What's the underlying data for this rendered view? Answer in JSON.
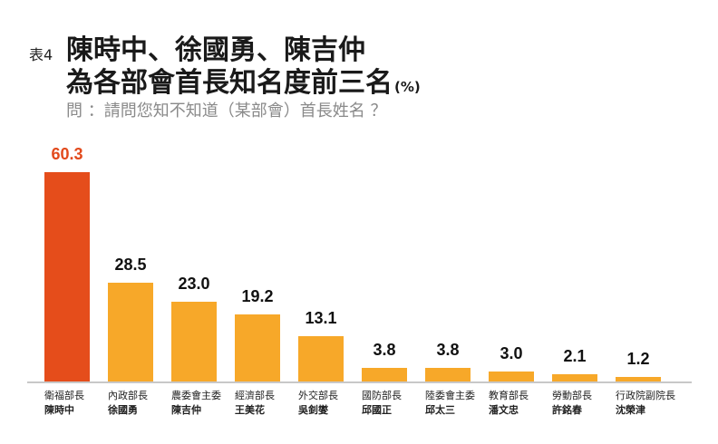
{
  "header": {
    "table_no": "表4",
    "title_line1": "陳時中、徐國勇、陳吉仲",
    "title_line2": "為各部會首長知名度前三名",
    "unit": "(%)",
    "subtitle": "問 ：請問您知不知道（某部會）首長姓名 ？"
  },
  "colors": {
    "highlight": "#e54d1b",
    "bar": "#f7a829",
    "axis": "#c8c8c8",
    "highlight_text": "#e24a1c"
  },
  "chart_data": {
    "type": "bar",
    "title": "陳時中、徐國勇、陳吉仲為各部會首長知名度前三名 (%)",
    "subtitle": "問 ：請問您知不知道（某部會）首長姓名 ？",
    "xlabel": "",
    "ylabel": "%",
    "ylim": [
      0,
      60.3
    ],
    "grid": false,
    "legend": "none",
    "categories": [
      "衛福部長 陳時中",
      "內政部長 徐國勇",
      "農委會主委 陳吉仲",
      "經濟部長 王美花",
      "外交部長 吳釗燮",
      "國防部長 邱國正",
      "陸委會主委 邱太三",
      "教育部長 潘文忠",
      "勞動部長 許銘春",
      "行政院副院長 沈榮津"
    ],
    "values": [
      60.3,
      28.5,
      23.0,
      19.2,
      13.1,
      3.8,
      3.8,
      3.0,
      2.1,
      1.2
    ],
    "bars": [
      {
        "role": "衛福部長",
        "name": "陳時中",
        "value": 60.3,
        "label": "60.3",
        "highlight": true
      },
      {
        "role": "內政部長",
        "name": "徐國勇",
        "value": 28.5,
        "label": "28.5",
        "highlight": false
      },
      {
        "role": "農委會主委",
        "name": "陳吉仲",
        "value": 23.0,
        "label": "23.0",
        "highlight": false
      },
      {
        "role": "經濟部長",
        "name": "王美花",
        "value": 19.2,
        "label": "19.2",
        "highlight": false
      },
      {
        "role": "外交部長",
        "name": "吳釗燮",
        "value": 13.1,
        "label": "13.1",
        "highlight": false
      },
      {
        "role": "國防部長",
        "name": "邱國正",
        "value": 3.8,
        "label": "3.8",
        "highlight": false
      },
      {
        "role": "陸委會主委",
        "name": "邱太三",
        "value": 3.8,
        "label": "3.8",
        "highlight": false
      },
      {
        "role": "教育部長",
        "name": "潘文忠",
        "value": 3.0,
        "label": "3.0",
        "highlight": false
      },
      {
        "role": "勞動部長",
        "name": "許銘春",
        "value": 2.1,
        "label": "2.1",
        "highlight": false
      },
      {
        "role": "行政院副院長",
        "name": "沈榮津",
        "value": 1.2,
        "label": "1.2",
        "highlight": false
      }
    ]
  }
}
